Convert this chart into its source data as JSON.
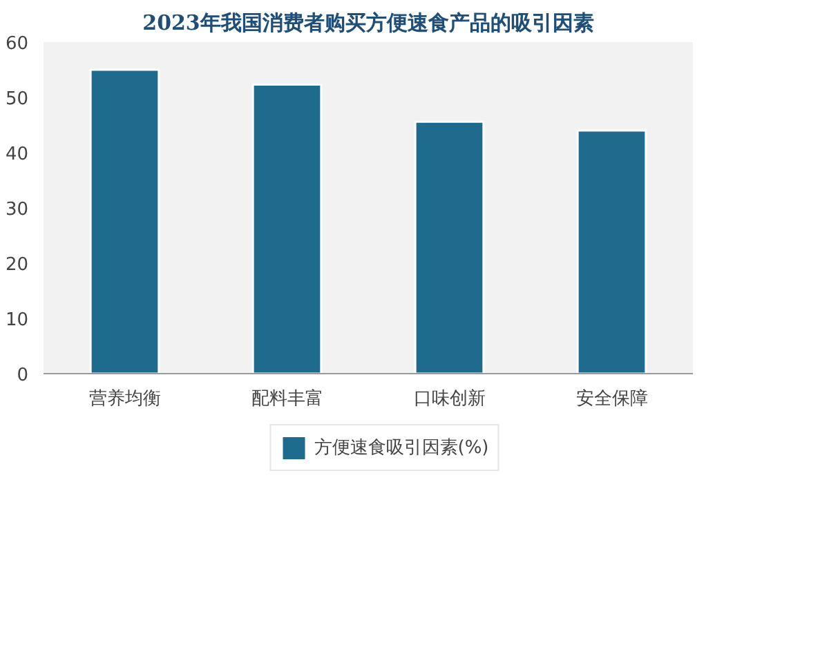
{
  "chart_data": {
    "type": "bar",
    "title": "2023年我国消费者购买方便速食产品的吸引因素",
    "categories": [
      "营养均衡",
      "配料丰富",
      "口味创新",
      "安全保障"
    ],
    "series": [
      {
        "name": "方便速食吸引因素(%)",
        "color": "#1f6b8e",
        "values": [
          55.0,
          52.3,
          45.6,
          44.0
        ]
      }
    ],
    "ylim": [
      0,
      60
    ],
    "yticks": [
      0,
      10,
      20,
      30,
      40,
      50,
      60
    ],
    "legend": "bottom"
  }
}
